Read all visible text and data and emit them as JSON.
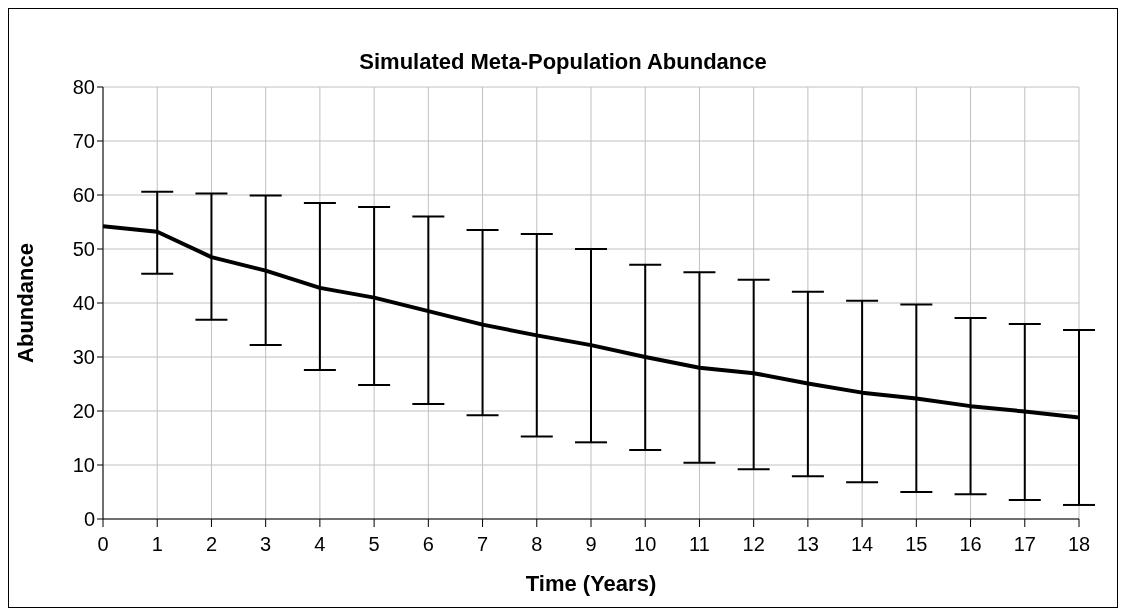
{
  "chart_data": {
    "type": "line",
    "title": "Simulated Meta-Population Abundance",
    "xlabel": "Time (Years)",
    "ylabel": "Abundance",
    "x": [
      0,
      1,
      2,
      3,
      4,
      5,
      6,
      7,
      8,
      9,
      10,
      11,
      12,
      13,
      14,
      15,
      16,
      17,
      18
    ],
    "series": [
      {
        "color": "#000000",
        "values": [
          54.2,
          53.2,
          48.5,
          46.0,
          42.8,
          41.0,
          38.5,
          36.0,
          34.0,
          32.2,
          30.0,
          28.0,
          27.0,
          25.1,
          23.4,
          22.3,
          20.9,
          19.9,
          18.8
        ],
        "errors": [
          null,
          [
            45.4,
            60.6
          ],
          [
            36.9,
            60.3
          ],
          [
            32.2,
            59.9
          ],
          [
            27.6,
            58.5
          ],
          [
            24.8,
            57.8
          ],
          [
            21.3,
            56.0
          ],
          [
            19.2,
            53.5
          ],
          [
            15.3,
            52.8
          ],
          [
            14.2,
            50.0
          ],
          [
            12.8,
            47.1
          ],
          [
            10.4,
            45.7
          ],
          [
            9.2,
            44.3
          ],
          [
            7.9,
            42.1
          ],
          [
            6.8,
            40.4
          ],
          [
            5.0,
            39.7
          ],
          [
            4.6,
            37.2
          ],
          [
            3.5,
            36.1
          ],
          [
            2.6,
            35.0
          ]
        ]
      }
    ],
    "xlim": [
      0,
      18
    ],
    "xticks": [
      0,
      1,
      2,
      3,
      4,
      5,
      6,
      7,
      8,
      9,
      10,
      11,
      12,
      13,
      14,
      15,
      16,
      17,
      18
    ],
    "ylim": [
      0,
      80
    ],
    "yticks": [
      0,
      10,
      20,
      30,
      40,
      50,
      60,
      70,
      80
    ],
    "grid": true,
    "legend": false,
    "marker": "none",
    "line_style": "solid"
  }
}
